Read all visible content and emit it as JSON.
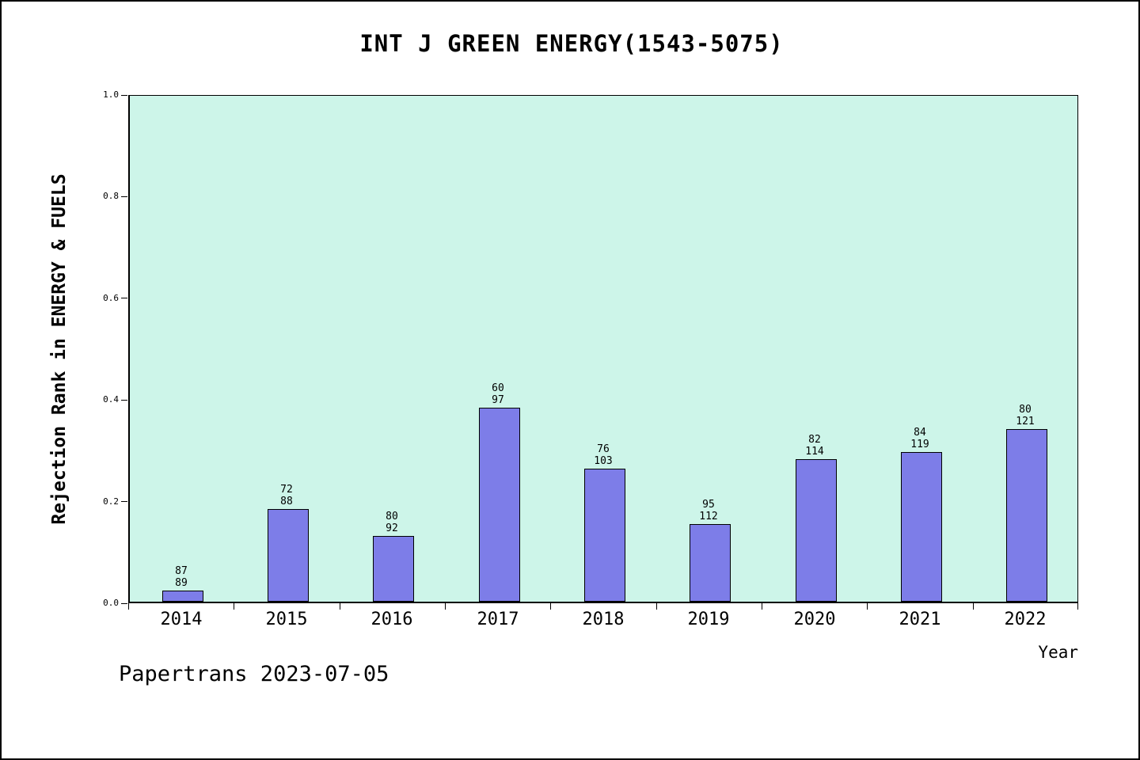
{
  "footer": "Papertrans 2023-07-05",
  "chart_data": {
    "type": "bar",
    "title": "INT J GREEN ENERGY(1543-5075)",
    "xlabel": "Year",
    "ylabel": "Rejection Rank in ENERGY & FUELS",
    "categories": [
      "2014",
      "2015",
      "2016",
      "2017",
      "2018",
      "2019",
      "2020",
      "2021",
      "2022"
    ],
    "series": [
      {
        "name": "rejection_rank",
        "values": [
          87,
          72,
          80,
          60,
          76,
          95,
          82,
          84,
          80
        ]
      },
      {
        "name": "journals_total",
        "values": [
          89,
          88,
          92,
          97,
          103,
          112,
          114,
          119,
          121
        ]
      }
    ],
    "bar_heights": [
      0.022,
      0.182,
      0.13,
      0.381,
      0.262,
      0.152,
      0.281,
      0.294,
      0.339
    ],
    "bar_labels_top": [
      "87",
      "72",
      "80",
      "60",
      "76",
      "95",
      "82",
      "84",
      "80"
    ],
    "bar_labels_bottom": [
      "89",
      "88",
      "92",
      "97",
      "103",
      "112",
      "114",
      "119",
      "121"
    ],
    "ylim": [
      0.0,
      1.0
    ],
    "yticks": [
      "0.0",
      "0.2",
      "0.4",
      "0.6",
      "0.8",
      "1.0"
    ],
    "grid": false,
    "legend": "none",
    "plot_bg": "#cdf5e9",
    "bar_color": "#7d7de8"
  }
}
